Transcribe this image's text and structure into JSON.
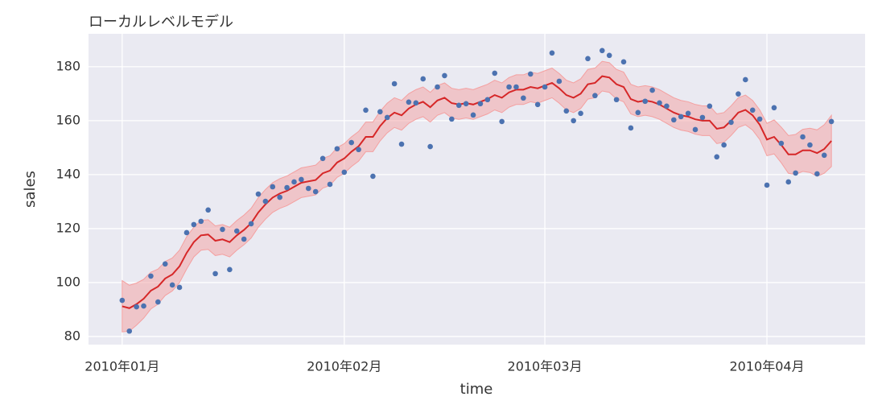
{
  "chart_data": {
    "type": "scatter",
    "title": "ローカルレベルモデル",
    "x_label": "time",
    "y_label": "sales",
    "x": [
      0,
      1,
      2,
      3,
      4,
      5,
      6,
      7,
      8,
      9,
      10,
      11,
      12,
      13,
      14,
      15,
      16,
      17,
      18,
      19,
      20,
      21,
      22,
      23,
      24,
      25,
      26,
      27,
      28,
      29,
      30,
      31,
      32,
      33,
      34,
      35,
      36,
      37,
      38,
      39,
      40,
      41,
      42,
      43,
      44,
      45,
      46,
      47,
      48,
      49,
      50,
      51,
      52,
      53,
      54,
      55,
      56,
      57,
      58,
      59,
      60,
      61,
      62,
      63,
      64,
      65,
      66,
      67,
      68,
      69,
      70,
      71,
      72,
      73,
      74,
      75,
      76,
      77,
      78,
      79,
      80,
      81,
      82,
      83,
      84,
      85,
      86,
      87,
      88,
      89,
      90,
      91,
      92,
      93,
      94,
      95,
      96,
      97,
      98,
      99
    ],
    "points": {
      "color": "#4c72b0",
      "values": [
        93.4,
        82,
        91,
        91.3,
        102.4,
        92.8,
        106.9,
        99.1,
        98.2,
        118.5,
        121.5,
        122.7,
        126.9,
        103.3,
        119.7,
        104.8,
        119.1,
        116.1,
        121.8,
        132.8,
        130.1,
        135.5,
        131.6,
        135.2,
        137.3,
        138.2,
        134.9,
        133.7,
        146,
        136.4,
        149.6,
        140.9,
        151.9,
        149.3,
        163.9,
        139.4,
        163.3,
        161.2,
        173.7,
        151.3,
        166.9,
        166.6,
        175.5,
        150.4,
        172.5,
        176.7,
        160.6,
        165.7,
        166.3,
        162.1,
        166.3,
        167.8,
        177.6,
        159.7,
        172.5,
        172.5,
        168.4,
        177.3,
        166,
        172.5,
        185.1,
        174.6,
        163.6,
        160,
        162.7,
        183,
        169.3,
        186,
        184.2,
        167.8,
        181.8,
        157.3,
        163,
        167.2,
        171.3,
        166.6,
        165.4,
        160.3,
        161.5,
        162.7,
        156.7,
        161.2,
        165.4,
        146.6,
        151,
        159.4,
        169.9,
        175.2,
        163.9,
        160.6,
        136.1,
        164.8,
        151.6,
        137.3,
        140.6,
        154,
        151,
        140.3,
        147.2,
        159.7
      ]
    },
    "level": {
      "color": "#d62728",
      "values": [
        91.2,
        90.5,
        92,
        94,
        97,
        98.5,
        101.5,
        103,
        106,
        111,
        115,
        117.5,
        117.8,
        115.5,
        116,
        115,
        117.5,
        119.5,
        122,
        126,
        129,
        131.5,
        133,
        134,
        135.5,
        137,
        137.5,
        138,
        140.5,
        141.5,
        144.5,
        146,
        148.5,
        150.5,
        154,
        154,
        158,
        161,
        163,
        162,
        164.5,
        166,
        167,
        165,
        167.5,
        168.5,
        166.5,
        166,
        166.5,
        166,
        167,
        168,
        169.5,
        168.5,
        170.5,
        171.5,
        171.5,
        172.5,
        172,
        173,
        174,
        172,
        169.5,
        168.5,
        170,
        173.5,
        174,
        176.5,
        176,
        173.5,
        172.5,
        168,
        167,
        167.5,
        167,
        166,
        164.5,
        163,
        162,
        161.5,
        160.5,
        160,
        160,
        157,
        157.5,
        160,
        163,
        164,
        162,
        158.5,
        153,
        154,
        151,
        147.5,
        147.5,
        149,
        149,
        148,
        149.5,
        152.5
      ]
    },
    "band": {
      "color": "#f4a0a0",
      "lower": [
        81.7,
        82,
        84.2,
        86.8,
        90.2,
        92,
        95.2,
        96.9,
        100,
        105,
        109.5,
        112,
        112.3,
        110,
        110.5,
        109.5,
        112,
        114,
        116.5,
        120.5,
        123.5,
        126,
        127.5,
        128.5,
        130,
        131.5,
        132,
        132.5,
        135,
        136,
        139,
        140.5,
        143,
        145,
        148.5,
        148.5,
        152.5,
        155.5,
        157.5,
        156.5,
        159,
        160.5,
        161.5,
        159.5,
        162,
        163,
        161,
        160.5,
        161,
        160.5,
        161.5,
        162.5,
        164,
        163,
        165,
        166,
        166,
        167,
        166.5,
        167.5,
        168.5,
        166.5,
        164,
        163,
        164.5,
        168,
        168.5,
        171,
        170.5,
        168,
        167,
        162.5,
        161.5,
        162,
        161.5,
        160.5,
        159,
        157.5,
        156.5,
        156,
        155,
        154.5,
        154.5,
        151.5,
        152,
        154.5,
        157.5,
        158.5,
        156.5,
        153,
        147,
        147.7,
        144.4,
        140.5,
        140.1,
        141.2,
        140.8,
        139.4,
        140.5,
        143
      ],
      "upper": [
        100.7,
        99,
        99.8,
        101.2,
        103.8,
        105,
        107.8,
        109.1,
        112,
        117,
        120.5,
        123,
        123.3,
        121,
        121.5,
        120.5,
        123,
        125,
        127.5,
        131.5,
        134.5,
        137,
        138.5,
        139.5,
        141,
        142.5,
        143,
        143.5,
        146,
        147,
        150,
        151.5,
        154,
        156,
        159.5,
        159.5,
        163.5,
        166.5,
        168.5,
        167.5,
        170,
        171.5,
        172.5,
        170.5,
        173,
        174,
        172,
        171.5,
        172,
        171.5,
        172.5,
        173.5,
        175,
        174,
        176,
        177,
        177,
        178,
        177.5,
        178.5,
        179.5,
        177.5,
        175,
        174,
        175.5,
        179,
        179.5,
        182,
        181.5,
        179,
        178,
        173.5,
        172.5,
        173,
        172.5,
        171.5,
        170,
        168.5,
        167.5,
        167,
        166,
        165.5,
        165.5,
        162.5,
        163,
        165.5,
        168.5,
        169.5,
        167.5,
        164,
        159,
        160.3,
        157.6,
        154.5,
        154.9,
        156.8,
        157.2,
        156.6,
        158.5,
        162
      ]
    },
    "xlim": [
      -4.7,
      103.7
    ],
    "xticks": [
      {
        "value": 0,
        "label": "2010年01月"
      },
      {
        "value": 31,
        "label": "2010年02月"
      },
      {
        "value": 59,
        "label": "2010年03月"
      },
      {
        "value": 90,
        "label": "2010年04月"
      }
    ],
    "ylim": [
      77,
      192.2
    ],
    "yticks": [
      80,
      100,
      120,
      140,
      160,
      180
    ],
    "grid": true
  }
}
